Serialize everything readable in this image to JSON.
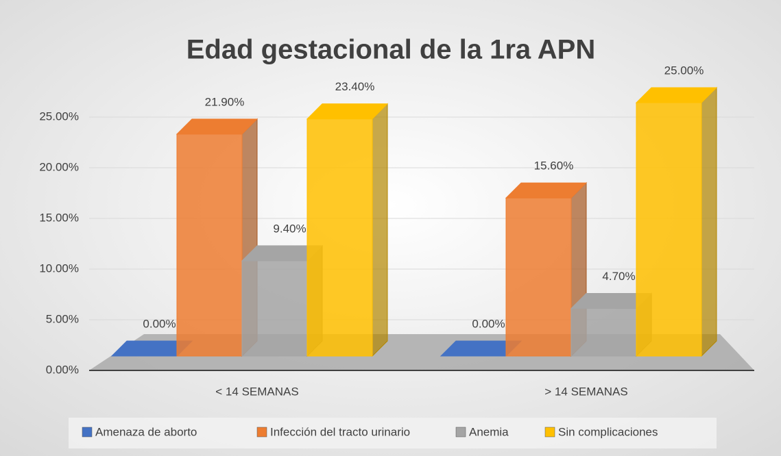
{
  "chart_data": {
    "type": "bar3d",
    "title": "Edad gestacional de la 1ra APN",
    "categories": [
      "< 14 SEMANAS",
      "> 14 SEMANAS"
    ],
    "series": [
      {
        "name": "Amenaza de aborto",
        "color": "#4472c4",
        "values": [
          0,
          0
        ],
        "value_labels": [
          "0.00%",
          "0.00%"
        ]
      },
      {
        "name": "Infección del tracto urinario",
        "color": "#ed7d31",
        "values": [
          21.9,
          15.6
        ],
        "value_labels": [
          "21.90%",
          "15.60%"
        ]
      },
      {
        "name": "Anemia",
        "color": "#a5a5a5",
        "values": [
          9.4,
          4.7
        ],
        "value_labels": [
          "9.40%",
          "4.70%"
        ]
      },
      {
        "name": "Sin complicaciones",
        "color": "#ffc000",
        "values": [
          23.4,
          25
        ],
        "value_labels": [
          "23.40%",
          "25.00%"
        ]
      }
    ],
    "ylim": [
      0,
      25
    ],
    "yticks": [
      {
        "value": 0,
        "label": "0.00%"
      },
      {
        "value": 5,
        "label": "5.00%"
      },
      {
        "value": 10,
        "label": "10.00%"
      },
      {
        "value": 15,
        "label": "15.00%"
      },
      {
        "value": 20,
        "label": "20.00%"
      },
      {
        "value": 25,
        "label": "25.00%"
      }
    ],
    "grid": true,
    "legend": "bottom"
  }
}
